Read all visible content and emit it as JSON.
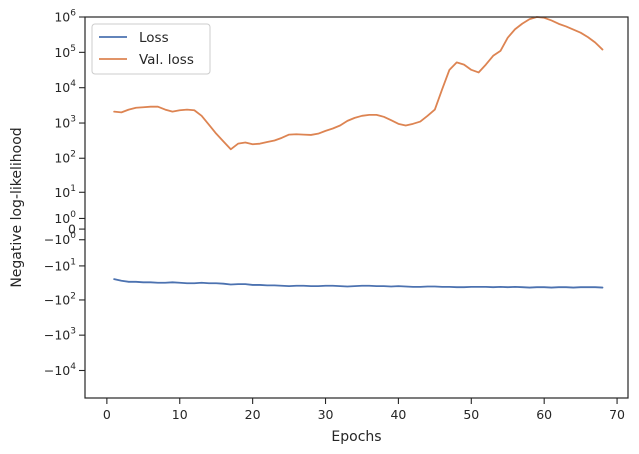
{
  "chart_data": {
    "type": "line",
    "title": "",
    "xlabel": "Epochs",
    "ylabel": "Negative log-likelihood",
    "xlim": [
      -3,
      71.5
    ],
    "xticks": [
      0,
      10,
      20,
      30,
      40,
      50,
      60,
      70
    ],
    "yscale": "symlog",
    "ylim": [
      -60000,
      1000000
    ],
    "yticks": [
      {
        "value": 1000000,
        "base": "10",
        "exp": "6"
      },
      {
        "value": 100000,
        "base": "10",
        "exp": "5"
      },
      {
        "value": 10000,
        "base": "10",
        "exp": "4"
      },
      {
        "value": 1000,
        "base": "10",
        "exp": "3"
      },
      {
        "value": 100,
        "base": "10",
        "exp": "2"
      },
      {
        "value": 10,
        "base": "10",
        "exp": "1"
      },
      {
        "value": 1,
        "base": "10",
        "exp": "0"
      },
      {
        "value": 0,
        "base": "0",
        "exp": ""
      },
      {
        "value": -1,
        "base": "−10",
        "exp": "0"
      },
      {
        "value": -10,
        "base": "−10",
        "exp": "1"
      },
      {
        "value": -100,
        "base": "−10",
        "exp": "2"
      },
      {
        "value": -1000,
        "base": "−10",
        "exp": "3"
      },
      {
        "value": -10000,
        "base": "−10",
        "exp": "4"
      }
    ],
    "grid": false,
    "legend": "top-left",
    "x": [
      1,
      2,
      3,
      4,
      5,
      6,
      7,
      8,
      9,
      10,
      11,
      12,
      13,
      14,
      15,
      16,
      17,
      18,
      19,
      20,
      21,
      22,
      23,
      24,
      25,
      26,
      27,
      28,
      29,
      30,
      31,
      32,
      33,
      34,
      35,
      36,
      37,
      38,
      39,
      40,
      41,
      42,
      43,
      44,
      45,
      46,
      47,
      48,
      49,
      50,
      51,
      52,
      53,
      54,
      55,
      56,
      57,
      58,
      59,
      60,
      61,
      62,
      63,
      64,
      65,
      66,
      67,
      68
    ],
    "series": [
      {
        "name": "Loss",
        "color": "#4c72b0",
        "values": [
          -25,
          -28,
          -30,
          -30,
          -31,
          -31,
          -32,
          -32,
          -31,
          -32,
          -33,
          -33,
          -32,
          -33,
          -33,
          -34,
          -36,
          -35,
          -35,
          -37,
          -37,
          -38,
          -38,
          -39,
          -40,
          -39,
          -39,
          -40,
          -40,
          -39,
          -39,
          -40,
          -41,
          -40,
          -39,
          -39,
          -40,
          -40,
          -41,
          -40,
          -41,
          -42,
          -42,
          -41,
          -41,
          -42,
          -42,
          -43,
          -43,
          -42,
          -42,
          -42,
          -43,
          -42,
          -43,
          -42,
          -43,
          -44,
          -43,
          -43,
          -44,
          -43,
          -43,
          -44,
          -43,
          -43,
          -43,
          -44
        ]
      },
      {
        "name": "Val. loss",
        "color": "#dd8452",
        "values": [
          2100,
          2000,
          2400,
          2700,
          2800,
          2900,
          2900,
          2400,
          2100,
          2300,
          2400,
          2300,
          1600,
          900,
          500,
          300,
          180,
          260,
          280,
          250,
          260,
          290,
          320,
          380,
          470,
          480,
          470,
          460,
          500,
          600,
          700,
          850,
          1150,
          1400,
          1600,
          1700,
          1700,
          1500,
          1200,
          950,
          850,
          950,
          1100,
          1600,
          2400,
          9000,
          32000,
          52000,
          45000,
          32000,
          27000,
          45000,
          80000,
          110000,
          260000,
          450000,
          650000,
          870000,
          1000000,
          950000,
          800000,
          640000,
          540000,
          440000,
          360000,
          270000,
          190000,
          120000
        ]
      }
    ]
  }
}
